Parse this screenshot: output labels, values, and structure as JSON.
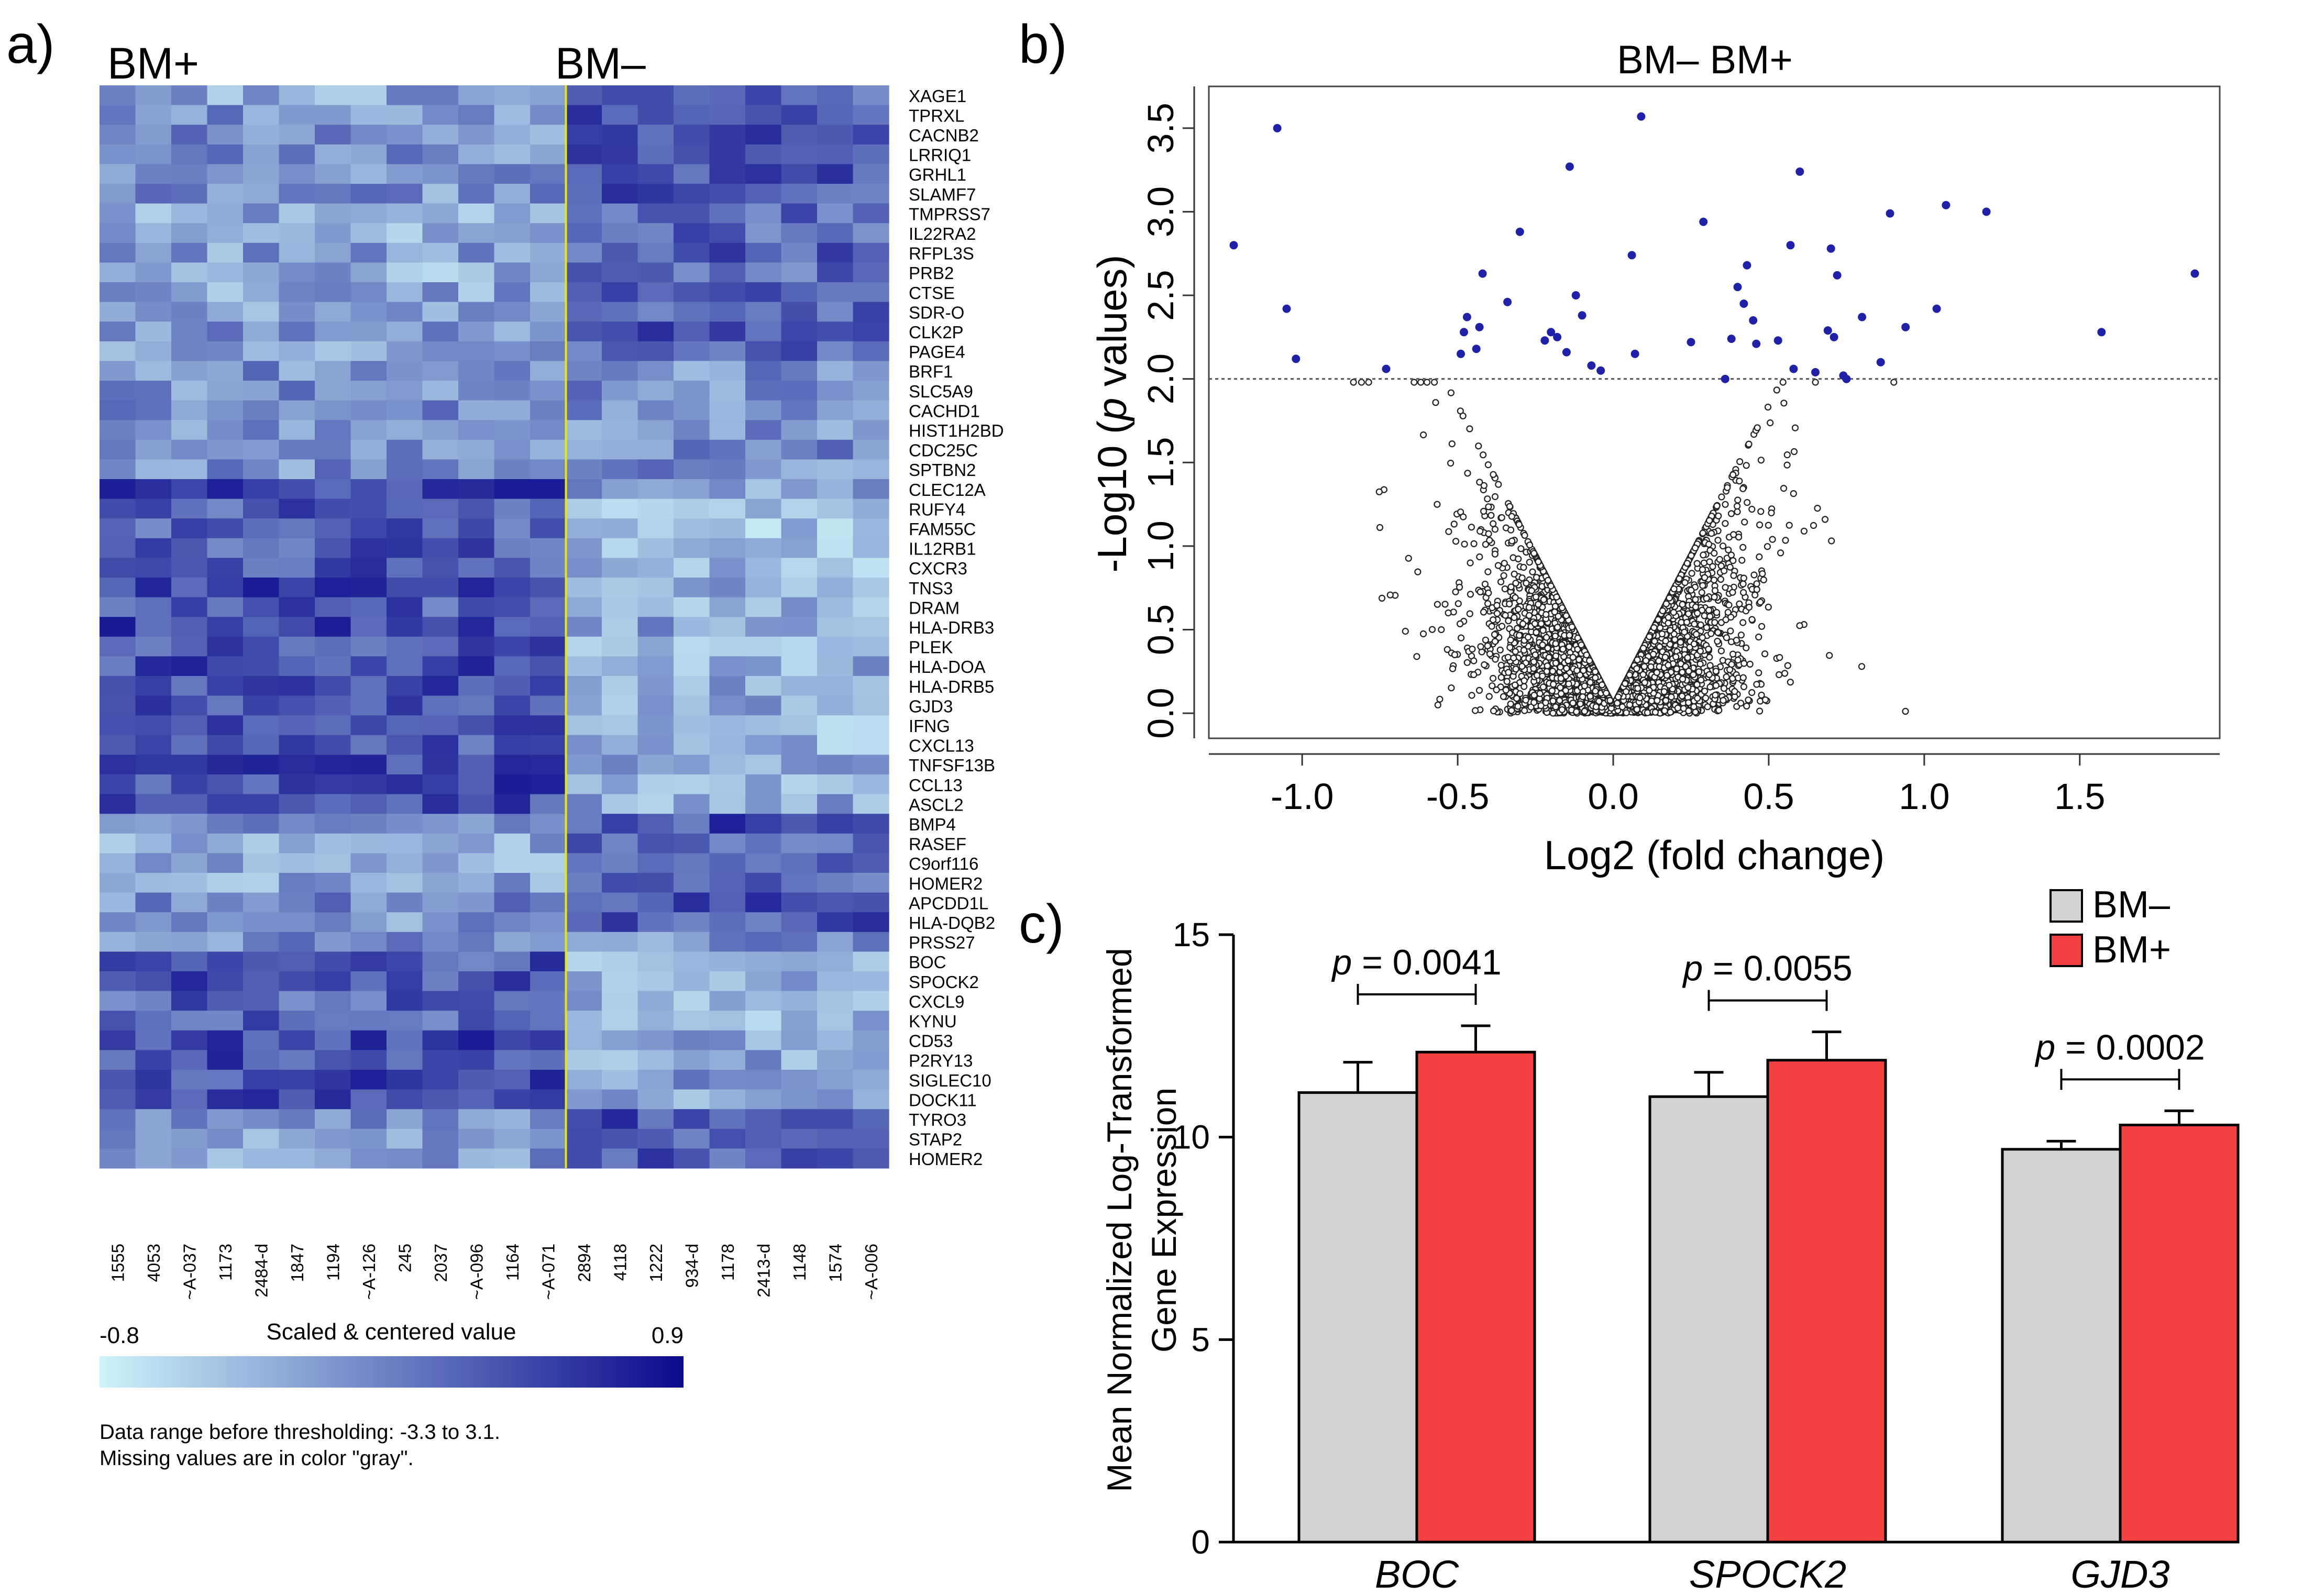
{
  "panel_labels": {
    "a": "a)",
    "b": "b)",
    "c": "c)"
  },
  "heatmap": {
    "group_left": "BM+",
    "group_right": "BM–",
    "genes": [
      "XAGE1",
      "TPRXL",
      "CACNB2",
      "LRRIQ1",
      "GRHL1",
      "SLAMF7",
      "TMPRSS7",
      "IL22RA2",
      "RFPL3S",
      "PRB2",
      "CTSE",
      "SDR-O",
      "CLK2P",
      "PAGE4",
      "BRF1",
      "SLC5A9",
      "CACHD1",
      "HIST1H2BD",
      "CDC25C",
      "SPTBN2",
      "CLEC12A",
      "RUFY4",
      "FAM55C",
      "IL12RB1",
      "CXCR3",
      "TNS3",
      "DRAM",
      "HLA-DRB3",
      "PLEK",
      "HLA-DOA",
      "HLA-DRB5",
      "GJD3",
      "IFNG",
      "CXCL13",
      "TNFSF13B",
      "CCL13",
      "ASCL2",
      "BMP4",
      "RASEF",
      "C9orf116",
      "HOMER2",
      "APCDD1L",
      "HLA-DQB2",
      "PRSS27",
      "BOC",
      "SPOCK2",
      "CXCL9",
      "KYNU",
      "CD53",
      "P2RY13",
      "SIGLEC10",
      "DOCK11",
      "TYRO3",
      "STAP2",
      "HOMER2"
    ],
    "samples": [
      "1555",
      "4053",
      "~A-037",
      "1173",
      "2484-d",
      "1847",
      "1194",
      "~A-126",
      "245",
      "2037",
      "~A-096",
      "1164",
      "~A-071",
      "2894",
      "4118",
      "1222",
      "934-d",
      "1178",
      "2413-d",
      "1148",
      "1574",
      "~A-006"
    ],
    "n_left": 13,
    "legend": {
      "min_label": "-0.8",
      "max_label": "0.9",
      "title": "Scaled & centered value",
      "color_low": "#ccf4f9",
      "color_high": "#0a0a8c"
    },
    "note_line1": "Data range before thresholding: -3.3 to 3.1.",
    "note_line2": "Missing values are in color \"gray\"."
  },
  "colors": {
    "divider": "#e8e800",
    "sig_point": "#1f22a8",
    "bar_gray": "#d3d3d3",
    "bar_red": "#f34040"
  },
  "chart_data": [
    {
      "type": "scatter",
      "title": "BM– BM+",
      "xlabel": "Log2 (fold change)",
      "ylabel_prefix": "-Log10 (",
      "ylabel_italic": "p",
      "ylabel_suffix": " values)",
      "xlim": [
        -1.3,
        1.95
      ],
      "ylim": [
        -0.15,
        3.75
      ],
      "xticks": [
        -1.0,
        -0.5,
        0.0,
        0.5,
        1.0,
        1.5
      ],
      "xtick_labels": [
        "-1.0",
        "-0.5",
        "0.0",
        "0.5",
        "1.0",
        "1.5"
      ],
      "yticks": [
        0.0,
        0.5,
        1.0,
        1.5,
        2.0,
        2.5,
        3.0,
        3.5
      ],
      "ytick_labels": [
        "0.0",
        "0.5",
        "1.0",
        "1.5",
        "2.0",
        "2.5",
        "3.0",
        "3.5"
      ],
      "threshold": 2.0,
      "significant_points": [
        [
          -1.08,
          3.5
        ],
        [
          -1.22,
          2.8
        ],
        [
          -1.05,
          2.42
        ],
        [
          -1.02,
          2.12
        ],
        [
          -0.73,
          2.06
        ],
        [
          0.09,
          3.57
        ],
        [
          -0.14,
          3.27
        ],
        [
          -0.3,
          2.88
        ],
        [
          -0.42,
          2.63
        ],
        [
          -0.47,
          2.37
        ],
        [
          -0.48,
          2.28
        ],
        [
          -0.49,
          2.15
        ],
        [
          -0.43,
          2.31
        ],
        [
          -0.44,
          2.18
        ],
        [
          -0.34,
          2.46
        ],
        [
          -0.22,
          2.23
        ],
        [
          -0.2,
          2.28
        ],
        [
          -0.18,
          2.25
        ],
        [
          -0.15,
          2.16
        ],
        [
          -0.12,
          2.5
        ],
        [
          -0.1,
          2.38
        ],
        [
          -0.07,
          2.08
        ],
        [
          -0.04,
          2.05
        ],
        [
          0.06,
          2.74
        ],
        [
          0.07,
          2.15
        ],
        [
          0.29,
          2.94
        ],
        [
          0.25,
          2.22
        ],
        [
          0.6,
          3.24
        ],
        [
          0.57,
          2.8
        ],
        [
          0.43,
          2.68
        ],
        [
          0.4,
          2.55
        ],
        [
          0.42,
          2.45
        ],
        [
          0.45,
          2.35
        ],
        [
          0.38,
          2.24
        ],
        [
          0.46,
          2.21
        ],
        [
          0.36,
          2.0
        ],
        [
          0.53,
          2.23
        ],
        [
          0.58,
          2.06
        ],
        [
          0.65,
          2.04
        ],
        [
          0.69,
          2.29
        ],
        [
          0.71,
          2.25
        ],
        [
          0.7,
          2.78
        ],
        [
          0.72,
          2.62
        ],
        [
          0.74,
          2.02
        ],
        [
          0.75,
          2.0
        ],
        [
          0.8,
          2.37
        ],
        [
          0.86,
          2.1
        ],
        [
          0.89,
          2.99
        ],
        [
          0.94,
          2.31
        ],
        [
          1.04,
          2.42
        ],
        [
          1.07,
          3.04
        ],
        [
          1.2,
          3.0
        ],
        [
          1.57,
          2.28
        ],
        [
          1.87,
          2.63
        ]
      ],
      "n_nonsignificant_points": 4200,
      "rng_seed": 11
    },
    {
      "type": "bar",
      "ylabel_line1": "Mean Normalized Log-Transformed",
      "ylabel_line2": "Gene Expression",
      "categories": [
        "BOC",
        "SPOCK2",
        "GJD3"
      ],
      "series": [
        {
          "name": "BM–",
          "values": [
            11.1,
            11.0,
            9.7
          ],
          "errors": [
            0.75,
            0.6,
            0.2
          ]
        },
        {
          "name": "BM+",
          "values": [
            12.1,
            11.9,
            10.3
          ],
          "errors": [
            0.65,
            0.7,
            0.35
          ]
        }
      ],
      "ylim": [
        0,
        15
      ],
      "yticks": [
        0,
        5,
        10,
        15
      ],
      "ytick_labels": [
        "0",
        "5",
        "10",
        "15"
      ],
      "pvalues": [
        {
          "p": "p",
          "text": " = 0.0041"
        },
        {
          "p": "p",
          "text": " = 0.0055"
        },
        {
          "p": "p",
          "text": " = 0.0002"
        }
      ],
      "legend_position": "top-right"
    }
  ]
}
